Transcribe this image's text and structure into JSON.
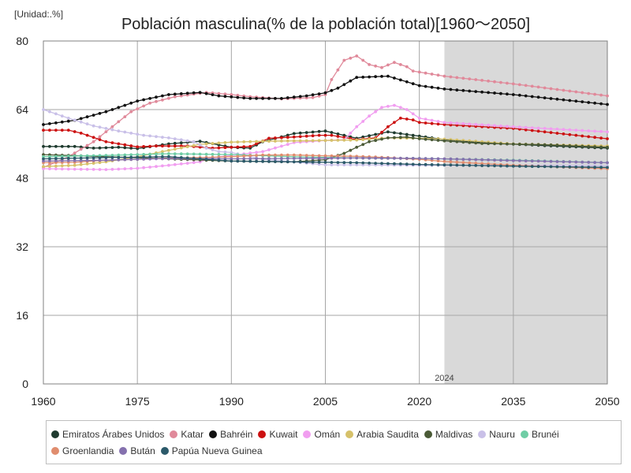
{
  "unit_label": "[Unidad:.%]",
  "chart_data": {
    "type": "line",
    "title": "Población masculina(% de la población total)[1960〜2050]",
    "xlabel": "",
    "ylabel": "",
    "xlim": [
      1960,
      2050
    ],
    "ylim": [
      0,
      80
    ],
    "x_ticks": [
      1960,
      1975,
      1990,
      2005,
      2020,
      2035,
      2050
    ],
    "y_ticks": [
      0,
      16,
      32,
      48,
      64,
      80
    ],
    "grid": true,
    "legend_position": "bottom",
    "forecast_region": {
      "from": 2024,
      "to": 2050,
      "label": "2024"
    },
    "series": [
      {
        "name": "Emiratos Árabes Unidos",
        "color": "#1f3b2f",
        "points": [
          [
            1960,
            55.4
          ],
          [
            1965,
            55.4
          ],
          [
            1968,
            55.0
          ],
          [
            1972,
            55.2
          ],
          [
            1975,
            54.9
          ],
          [
            1980,
            56.0
          ],
          [
            1985,
            56.6
          ],
          [
            1990,
            55.2
          ],
          [
            1993,
            55.0
          ],
          [
            1995,
            56.5
          ],
          [
            2000,
            58.4
          ],
          [
            2005,
            59.0
          ],
          [
            2010,
            57.3
          ],
          [
            2015,
            58.8
          ],
          [
            2020,
            57.8
          ],
          [
            2024,
            57.0
          ],
          [
            2030,
            56.3
          ],
          [
            2040,
            55.6
          ],
          [
            2050,
            55.0
          ]
        ]
      },
      {
        "name": "Katar",
        "color": "#e0899a",
        "points": [
          [
            1960,
            50.5
          ],
          [
            1964,
            53.0
          ],
          [
            1968,
            56.5
          ],
          [
            1971,
            60.0
          ],
          [
            1974,
            63.5
          ],
          [
            1977,
            65.5
          ],
          [
            1981,
            67.0
          ],
          [
            1986,
            68.0
          ],
          [
            1990,
            67.5
          ],
          [
            1993,
            67.0
          ],
          [
            1998,
            66.5
          ],
          [
            2003,
            66.8
          ],
          [
            2005,
            67.5
          ],
          [
            2006,
            71.0
          ],
          [
            2008,
            75.5
          ],
          [
            2010,
            76.5
          ],
          [
            2012,
            74.5
          ],
          [
            2014,
            73.8
          ],
          [
            2016,
            75.0
          ],
          [
            2018,
            74.0
          ],
          [
            2019,
            73.0
          ],
          [
            2024,
            71.8
          ],
          [
            2035,
            70.0
          ],
          [
            2050,
            67.2
          ]
        ]
      },
      {
        "name": "Bahréin",
        "color": "#111111",
        "points": [
          [
            1960,
            60.5
          ],
          [
            1965,
            61.5
          ],
          [
            1970,
            63.5
          ],
          [
            1975,
            66.0
          ],
          [
            1980,
            67.5
          ],
          [
            1985,
            68.0
          ],
          [
            1988,
            67.2
          ],
          [
            1993,
            66.6
          ],
          [
            1998,
            66.6
          ],
          [
            2002,
            67.2
          ],
          [
            2005,
            67.9
          ],
          [
            2007,
            69.0
          ],
          [
            2010,
            71.5
          ],
          [
            2015,
            71.8
          ],
          [
            2020,
            69.6
          ],
          [
            2024,
            68.8
          ],
          [
            2035,
            67.5
          ],
          [
            2050,
            65.2
          ]
        ]
      },
      {
        "name": "Kuwait",
        "color": "#cc1111",
        "points": [
          [
            1960,
            59.2
          ],
          [
            1964,
            59.2
          ],
          [
            1966,
            58.5
          ],
          [
            1970,
            56.5
          ],
          [
            1975,
            55.3
          ],
          [
            1978,
            55.5
          ],
          [
            1983,
            55.5
          ],
          [
            1987,
            55.0
          ],
          [
            1990,
            55.2
          ],
          [
            1993,
            55.4
          ],
          [
            1996,
            57.3
          ],
          [
            2000,
            57.6
          ],
          [
            2004,
            58.0
          ],
          [
            2006,
            58.0
          ],
          [
            2010,
            57.0
          ],
          [
            2013,
            57.4
          ],
          [
            2015,
            60.0
          ],
          [
            2017,
            62.0
          ],
          [
            2019,
            61.6
          ],
          [
            2020,
            61.0
          ],
          [
            2024,
            60.5
          ],
          [
            2035,
            59.6
          ],
          [
            2050,
            57.2
          ]
        ]
      },
      {
        "name": "Omán",
        "color": "#f19ef0",
        "points": [
          [
            1960,
            50.2
          ],
          [
            1970,
            50.0
          ],
          [
            1975,
            50.3
          ],
          [
            1980,
            51.0
          ],
          [
            1985,
            51.8
          ],
          [
            1987,
            52.8
          ],
          [
            1990,
            53.3
          ],
          [
            1995,
            54.2
          ],
          [
            2000,
            56.3
          ],
          [
            2005,
            56.8
          ],
          [
            2008,
            57.0
          ],
          [
            2010,
            60.0
          ],
          [
            2012,
            62.5
          ],
          [
            2014,
            64.5
          ],
          [
            2016,
            65.0
          ],
          [
            2018,
            64.0
          ],
          [
            2020,
            62.0
          ],
          [
            2024,
            61.0
          ],
          [
            2035,
            60.0
          ],
          [
            2050,
            58.8
          ]
        ]
      },
      {
        "name": "Arabia Saudita",
        "color": "#d6c16a",
        "points": [
          [
            1960,
            50.7
          ],
          [
            1965,
            51.0
          ],
          [
            1970,
            51.8
          ],
          [
            1975,
            53.0
          ],
          [
            1980,
            54.5
          ],
          [
            1985,
            55.9
          ],
          [
            1990,
            56.4
          ],
          [
            1995,
            56.6
          ],
          [
            2000,
            56.7
          ],
          [
            2005,
            56.8
          ],
          [
            2010,
            56.9
          ],
          [
            2015,
            57.4
          ],
          [
            2020,
            57.3
          ],
          [
            2024,
            57.1
          ],
          [
            2035,
            56.0
          ],
          [
            2050,
            55.5
          ]
        ]
      },
      {
        "name": "Maldivas",
        "color": "#4a5a36",
        "points": [
          [
            1960,
            53.5
          ],
          [
            1970,
            53.0
          ],
          [
            1980,
            52.5
          ],
          [
            1990,
            52.0
          ],
          [
            2000,
            51.8
          ],
          [
            2005,
            52.3
          ],
          [
            2008,
            53.8
          ],
          [
            2010,
            55.2
          ],
          [
            2012,
            56.5
          ],
          [
            2015,
            57.4
          ],
          [
            2018,
            57.6
          ],
          [
            2020,
            57.2
          ],
          [
            2024,
            56.7
          ],
          [
            2030,
            56.1
          ],
          [
            2040,
            55.8
          ],
          [
            2050,
            55.2
          ]
        ]
      },
      {
        "name": "Nauru",
        "color": "#c9c0e8",
        "points": [
          [
            1960,
            64.0
          ],
          [
            1964,
            62.0
          ],
          [
            1968,
            60.2
          ],
          [
            1972,
            59.0
          ],
          [
            1976,
            58.0
          ],
          [
            1980,
            57.4
          ],
          [
            1984,
            56.5
          ],
          [
            1986,
            55.0
          ],
          [
            1988,
            54.2
          ],
          [
            1990,
            54.0
          ],
          [
            1995,
            52.4
          ],
          [
            2000,
            51.8
          ],
          [
            2005,
            51.1
          ],
          [
            2010,
            51.1
          ],
          [
            2020,
            51.0
          ],
          [
            2035,
            51.0
          ],
          [
            2050,
            50.9
          ]
        ]
      },
      {
        "name": "Brunéi",
        "color": "#6fcda5",
        "points": [
          [
            1960,
            53.0
          ],
          [
            1970,
            53.3
          ],
          [
            1980,
            53.7
          ],
          [
            1990,
            53.5
          ],
          [
            2000,
            53.0
          ],
          [
            2010,
            52.7
          ],
          [
            2020,
            52.6
          ],
          [
            2035,
            52.2
          ],
          [
            2050,
            51.6
          ]
        ]
      },
      {
        "name": "Groenlandia",
        "color": "#e08d6e",
        "points": [
          [
            1960,
            51.6
          ],
          [
            1965,
            51.7
          ],
          [
            1970,
            52.2
          ],
          [
            1975,
            52.4
          ],
          [
            1980,
            52.7
          ],
          [
            1985,
            52.8
          ],
          [
            1990,
            53.0
          ],
          [
            1995,
            53.4
          ],
          [
            2000,
            53.4
          ],
          [
            2005,
            53.2
          ],
          [
            2010,
            53.1
          ],
          [
            2015,
            52.8
          ],
          [
            2020,
            52.4
          ],
          [
            2024,
            51.9
          ],
          [
            2035,
            51.0
          ],
          [
            2050,
            50.2
          ]
        ]
      },
      {
        "name": "Bután",
        "color": "#8571ae",
        "points": [
          [
            1960,
            52.0
          ],
          [
            1970,
            52.2
          ],
          [
            1980,
            52.6
          ],
          [
            1990,
            52.5
          ],
          [
            2000,
            52.6
          ],
          [
            2010,
            52.7
          ],
          [
            2020,
            52.6
          ],
          [
            2024,
            52.5
          ],
          [
            2035,
            52.1
          ],
          [
            2050,
            51.6
          ]
        ]
      },
      {
        "name": "Papúa Nueva Guinea",
        "color": "#2c5a6a",
        "points": [
          [
            1960,
            52.5
          ],
          [
            1970,
            52.8
          ],
          [
            1980,
            53.0
          ],
          [
            1990,
            52.0
          ],
          [
            2000,
            51.8
          ],
          [
            2010,
            51.6
          ],
          [
            2020,
            51.2
          ],
          [
            2035,
            50.8
          ],
          [
            2050,
            50.5
          ]
        ]
      }
    ]
  }
}
